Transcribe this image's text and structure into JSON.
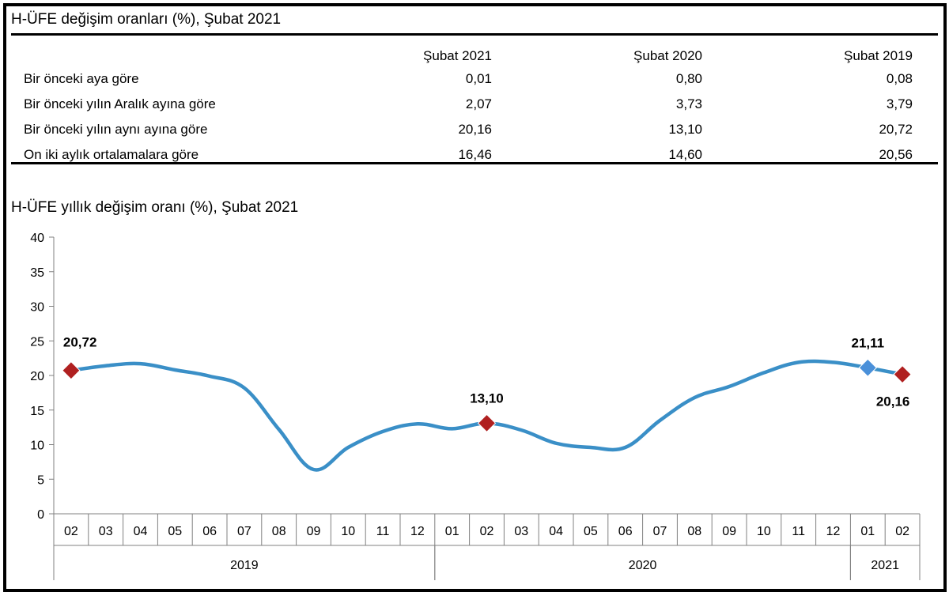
{
  "table": {
    "title": "H-ÜFE değişim oranları (%), Şubat 2021",
    "columns": [
      "Şubat 2021",
      "Şubat 2020",
      "Şubat 2019"
    ],
    "rows": [
      {
        "label": "Bir önceki aya göre",
        "values": [
          "0,01",
          "0,80",
          "0,08"
        ]
      },
      {
        "label": "Bir önceki yılın Aralık ayına göre",
        "values": [
          "2,07",
          "3,73",
          "3,79"
        ]
      },
      {
        "label": "Bir önceki yılın aynı ayına göre",
        "values": [
          "20,16",
          "13,10",
          "20,72"
        ]
      },
      {
        "label": "On iki aylık ortalamalara göre",
        "values": [
          "16,46",
          "14,60",
          "20,56"
        ]
      }
    ]
  },
  "chart_data": {
    "type": "line",
    "title": "H-ÜFE yıllık değişim oranı (%), Şubat 2021",
    "x": [
      "02",
      "03",
      "04",
      "05",
      "06",
      "07",
      "08",
      "09",
      "10",
      "11",
      "12",
      "01",
      "02",
      "03",
      "04",
      "05",
      "06",
      "07",
      "08",
      "09",
      "10",
      "11",
      "12",
      "01",
      "02"
    ],
    "year_groups": [
      {
        "label": "2019",
        "start": 0,
        "count": 11
      },
      {
        "label": "2020",
        "start": 11,
        "count": 12
      },
      {
        "label": "2021",
        "start": 23,
        "count": 2
      }
    ],
    "yticks": [
      "0",
      "5",
      "10",
      "15",
      "20",
      "25",
      "30",
      "35",
      "40"
    ],
    "ylim": [
      0,
      40
    ],
    "grid": false,
    "series": [
      {
        "values": [
          20.72,
          21.4,
          21.7,
          20.8,
          19.9,
          18.2,
          12.2,
          6.4,
          9.6,
          11.9,
          13.0,
          12.3,
          13.1,
          12.1,
          10.2,
          9.6,
          9.6,
          13.5,
          16.8,
          18.4,
          20.4,
          21.9,
          21.9,
          21.11,
          20.16
        ]
      }
    ],
    "line_color": "#3a8fc7",
    "annotations": [
      {
        "index": 0,
        "label": "20,72",
        "marker_color": "#b02020"
      },
      {
        "index": 12,
        "label": "13,10",
        "marker_color": "#b02020"
      },
      {
        "index": 23,
        "label": "21,11",
        "marker_color": "#4a90d9"
      },
      {
        "index": 24,
        "label": "20,16",
        "marker_color": "#b02020"
      }
    ]
  }
}
